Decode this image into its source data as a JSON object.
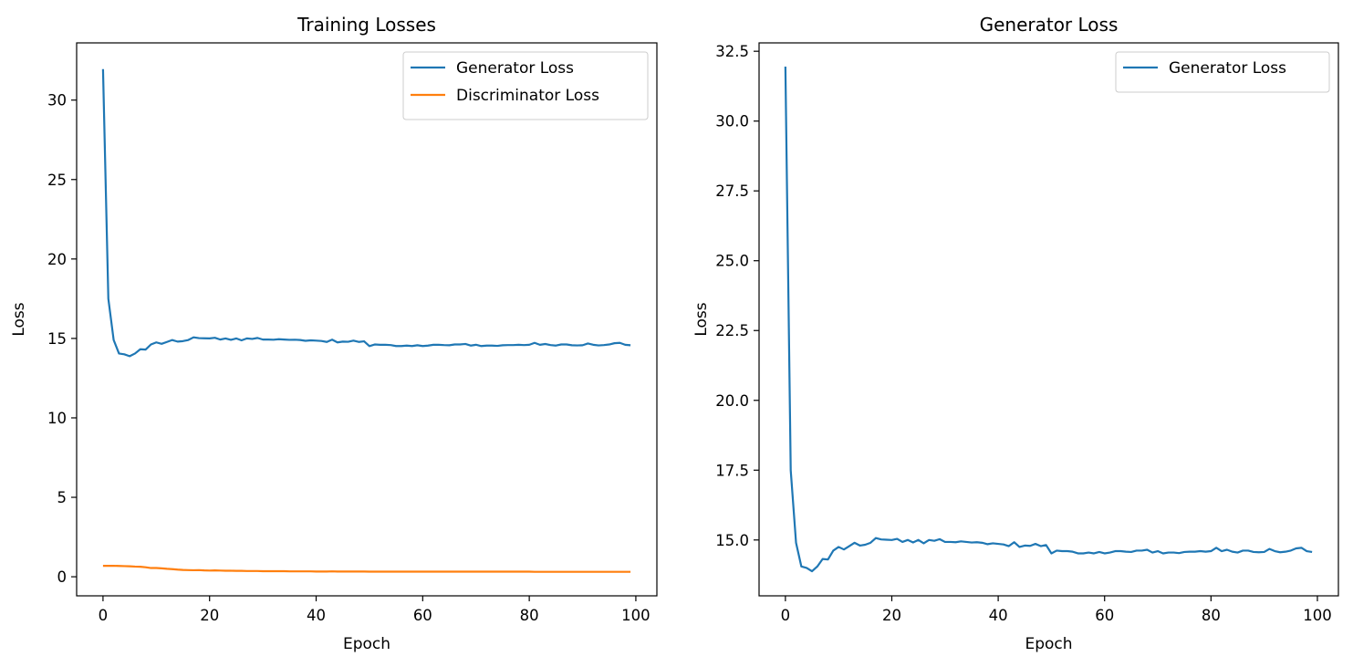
{
  "chart_data": [
    {
      "type": "line",
      "title": "Training Losses",
      "xlabel": "Epoch",
      "ylabel": "Loss",
      "xlim": [
        -4.95,
        103.95
      ],
      "ylim": [
        -1.2,
        33.6
      ],
      "xticks": [
        0,
        20,
        40,
        60,
        80,
        100
      ],
      "yticks": [
        0,
        5,
        10,
        15,
        20,
        25,
        30
      ],
      "ytick_labels": [
        "0",
        "5",
        "10",
        "15",
        "20",
        "25",
        "30"
      ],
      "legend_position": "upper right",
      "series": [
        {
          "name": "Generator Loss",
          "color": "#1f77b4",
          "values": [
            31.95,
            17.5,
            14.9,
            14.05,
            14.0,
            13.88,
            14.05,
            14.32,
            14.3,
            14.62,
            14.75,
            14.66,
            14.78,
            14.9,
            14.8,
            14.83,
            14.9,
            15.07,
            15.02,
            15.01,
            15.0,
            15.04,
            14.93,
            15.0,
            14.91,
            15.0,
            14.88,
            15.0,
            14.97,
            15.03,
            14.93,
            14.93,
            14.92,
            14.95,
            14.93,
            14.91,
            14.92,
            14.9,
            14.85,
            14.88,
            14.86,
            14.84,
            14.78,
            14.92,
            14.75,
            14.8,
            14.79,
            14.86,
            14.78,
            14.82,
            14.52,
            14.62,
            14.6,
            14.6,
            14.58,
            14.52,
            14.52,
            14.55,
            14.52,
            14.57,
            14.52,
            14.55,
            14.6,
            14.6,
            14.58,
            14.57,
            14.62,
            14.62,
            14.65,
            14.55,
            14.6,
            14.52,
            14.55,
            14.55,
            14.53,
            14.57,
            14.58,
            14.58,
            14.6,
            14.58,
            14.6,
            14.72,
            14.6,
            14.65,
            14.58,
            14.55,
            14.62,
            14.62,
            14.57,
            14.56,
            14.57,
            14.68,
            14.6,
            14.56,
            14.58,
            14.62,
            14.7,
            14.72,
            14.6,
            14.57
          ]
        },
        {
          "name": "Discriminator Loss",
          "color": "#ff7f0e",
          "values": [
            0.69,
            0.69,
            0.69,
            0.68,
            0.67,
            0.66,
            0.64,
            0.63,
            0.6,
            0.55,
            0.55,
            0.53,
            0.5,
            0.48,
            0.45,
            0.43,
            0.42,
            0.41,
            0.42,
            0.4,
            0.39,
            0.4,
            0.39,
            0.38,
            0.38,
            0.37,
            0.37,
            0.36,
            0.36,
            0.36,
            0.35,
            0.35,
            0.35,
            0.35,
            0.35,
            0.34,
            0.34,
            0.34,
            0.34,
            0.34,
            0.33,
            0.33,
            0.33,
            0.34,
            0.33,
            0.33,
            0.33,
            0.33,
            0.33,
            0.33,
            0.32,
            0.32,
            0.32,
            0.32,
            0.32,
            0.32,
            0.32,
            0.32,
            0.32,
            0.32,
            0.32,
            0.32,
            0.32,
            0.32,
            0.32,
            0.32,
            0.32,
            0.32,
            0.32,
            0.32,
            0.32,
            0.32,
            0.32,
            0.32,
            0.32,
            0.32,
            0.32,
            0.32,
            0.32,
            0.32,
            0.32,
            0.31,
            0.31,
            0.31,
            0.31,
            0.31,
            0.31,
            0.31,
            0.31,
            0.31,
            0.31,
            0.31,
            0.31,
            0.31,
            0.31,
            0.31,
            0.31,
            0.31,
            0.31,
            0.31
          ]
        }
      ]
    },
    {
      "type": "line",
      "title": "Generator Loss",
      "xlabel": "Epoch",
      "ylabel": "Loss",
      "xlim": [
        -4.95,
        103.95
      ],
      "ylim": [
        13.0,
        32.8
      ],
      "xticks": [
        0,
        20,
        40,
        60,
        80,
        100
      ],
      "yticks": [
        15.0,
        17.5,
        20.0,
        22.5,
        25.0,
        27.5,
        30.0,
        32.5
      ],
      "ytick_labels": [
        "15.0",
        "17.5",
        "20.0",
        "22.5",
        "25.0",
        "27.5",
        "30.0",
        "32.5"
      ],
      "legend_position": "upper right",
      "series": [
        {
          "name": "Generator Loss",
          "color": "#1f77b4",
          "values": [
            31.95,
            17.5,
            14.9,
            14.05,
            14.0,
            13.88,
            14.05,
            14.32,
            14.3,
            14.62,
            14.75,
            14.66,
            14.78,
            14.9,
            14.8,
            14.83,
            14.9,
            15.07,
            15.02,
            15.01,
            15.0,
            15.04,
            14.93,
            15.0,
            14.91,
            15.0,
            14.88,
            15.0,
            14.97,
            15.03,
            14.93,
            14.93,
            14.92,
            14.95,
            14.93,
            14.91,
            14.92,
            14.9,
            14.85,
            14.88,
            14.86,
            14.84,
            14.78,
            14.92,
            14.75,
            14.8,
            14.79,
            14.86,
            14.78,
            14.82,
            14.52,
            14.62,
            14.6,
            14.6,
            14.58,
            14.52,
            14.52,
            14.55,
            14.52,
            14.57,
            14.52,
            14.55,
            14.6,
            14.6,
            14.58,
            14.57,
            14.62,
            14.62,
            14.65,
            14.55,
            14.6,
            14.52,
            14.55,
            14.55,
            14.53,
            14.57,
            14.58,
            14.58,
            14.6,
            14.58,
            14.6,
            14.72,
            14.6,
            14.65,
            14.58,
            14.55,
            14.62,
            14.62,
            14.57,
            14.56,
            14.57,
            14.68,
            14.6,
            14.56,
            14.58,
            14.62,
            14.7,
            14.72,
            14.6,
            14.57
          ]
        }
      ]
    }
  ]
}
